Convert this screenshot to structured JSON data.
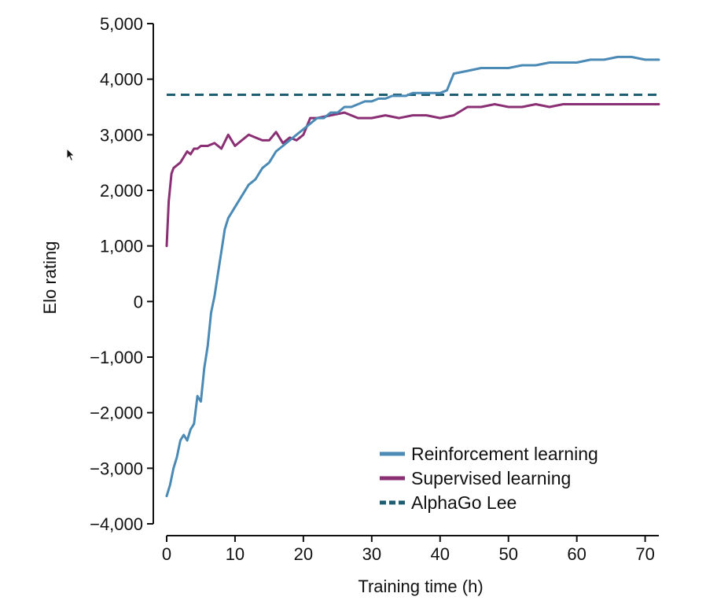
{
  "chart_data": {
    "type": "line",
    "title": "",
    "xlabel": "Training time (h)",
    "ylabel": "Elo rating",
    "xlim": [
      0,
      72
    ],
    "ylim": [
      -4000,
      5000
    ],
    "x_ticks": [
      0,
      10,
      20,
      30,
      40,
      50,
      60,
      70
    ],
    "x_tick_labels": [
      "0",
      "10",
      "20",
      "30",
      "40",
      "50",
      "60",
      "70"
    ],
    "y_ticks": [
      -4000,
      -3000,
      -2000,
      -1000,
      0,
      1000,
      2000,
      3000,
      4000,
      5000
    ],
    "y_tick_labels": [
      "−4,000",
      "−3,000",
      "−2,000",
      "−1,000",
      "0",
      "1,000",
      "2,000",
      "3,000",
      "4,000",
      "5,000"
    ],
    "grid": false,
    "legend_position": "bottom-right",
    "series": [
      {
        "name": "Reinforcement learning",
        "color": "#4a8ab5",
        "style": "solid",
        "x": [
          0,
          0.5,
          1,
          1.5,
          2,
          2.5,
          3,
          3.5,
          4,
          4.5,
          5,
          5.5,
          6,
          6.5,
          7,
          7.5,
          8,
          8.5,
          9,
          9.5,
          10,
          11,
          12,
          13,
          14,
          15,
          16,
          17,
          18,
          19,
          20,
          21,
          22,
          23,
          24,
          25,
          26,
          27,
          28,
          29,
          30,
          31,
          32,
          33,
          34,
          35,
          36,
          37,
          38,
          39,
          40,
          41,
          42,
          44,
          46,
          48,
          50,
          52,
          54,
          56,
          58,
          60,
          62,
          64,
          66,
          68,
          70,
          72
        ],
        "y": [
          -3500,
          -3300,
          -3000,
          -2800,
          -2500,
          -2400,
          -2500,
          -2300,
          -2200,
          -1700,
          -1800,
          -1200,
          -800,
          -200,
          100,
          500,
          900,
          1300,
          1500,
          1600,
          1700,
          1900,
          2100,
          2200,
          2400,
          2500,
          2700,
          2800,
          2900,
          3000,
          3100,
          3200,
          3300,
          3300,
          3400,
          3400,
          3500,
          3500,
          3550,
          3600,
          3600,
          3650,
          3650,
          3700,
          3700,
          3700,
          3750,
          3750,
          3750,
          3750,
          3750,
          3800,
          4100,
          4150,
          4200,
          4200,
          4200,
          4250,
          4250,
          4300,
          4300,
          4300,
          4350,
          4350,
          4400,
          4400,
          4350,
          4350
        ]
      },
      {
        "name": "Supervised learning",
        "color": "#8a2f73",
        "style": "solid",
        "x": [
          0,
          0.3,
          0.7,
          1,
          1.5,
          2,
          2.5,
          3,
          3.5,
          4,
          4.5,
          5,
          6,
          7,
          8,
          9,
          10,
          11,
          12,
          13,
          14,
          15,
          16,
          17,
          18,
          19,
          20,
          21,
          22,
          24,
          26,
          28,
          30,
          32,
          34,
          36,
          38,
          40,
          42,
          44,
          46,
          48,
          50,
          52,
          54,
          56,
          58,
          60,
          62,
          64,
          66,
          68,
          70,
          72
        ],
        "y": [
          1000,
          1800,
          2300,
          2400,
          2450,
          2500,
          2600,
          2700,
          2650,
          2750,
          2750,
          2800,
          2800,
          2850,
          2750,
          3000,
          2800,
          2900,
          3000,
          2950,
          2900,
          2900,
          3050,
          2850,
          2950,
          2900,
          3000,
          3300,
          3300,
          3350,
          3400,
          3300,
          3300,
          3350,
          3300,
          3350,
          3350,
          3300,
          3350,
          3500,
          3500,
          3550,
          3500,
          3500,
          3550,
          3500,
          3550,
          3550,
          3550,
          3550,
          3550,
          3550,
          3550,
          3550
        ]
      },
      {
        "name": "AlphaGo Lee",
        "color": "#1d5e73",
        "style": "dashed",
        "x": [
          0,
          72
        ],
        "y": [
          3720,
          3720
        ]
      }
    ]
  }
}
